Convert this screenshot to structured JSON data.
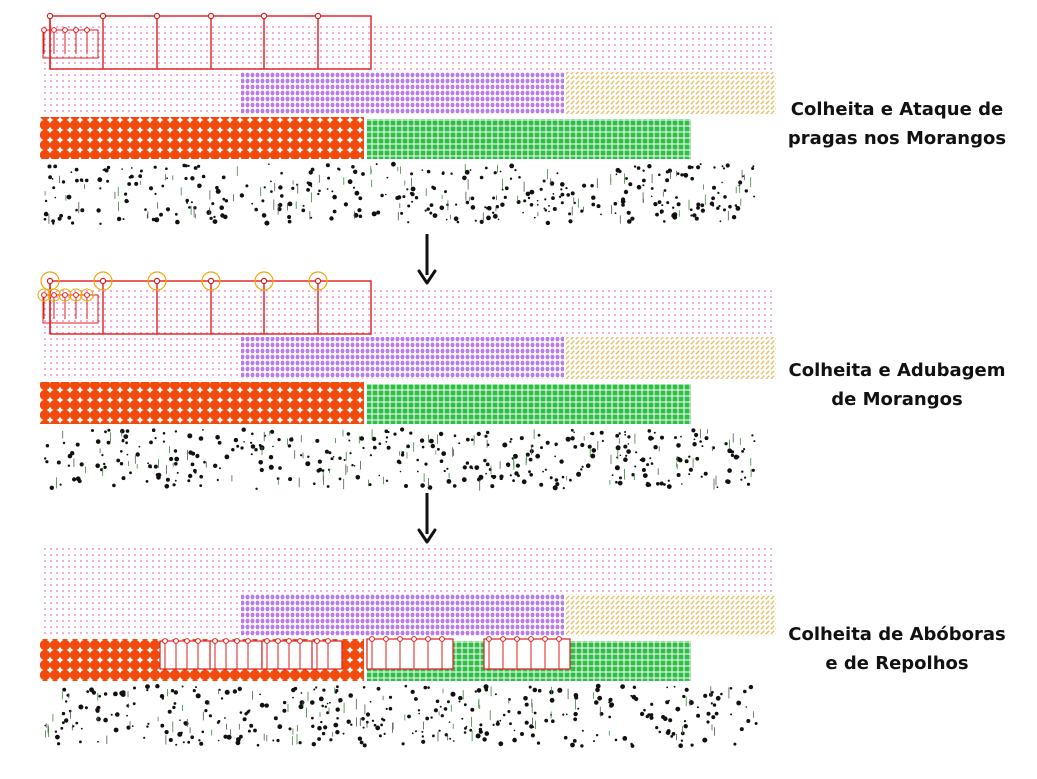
{
  "stages": [
    {
      "label_line1": "Colheita e Ataque de",
      "label_line2": "pragas nos Morangos"
    },
    {
      "label_line1": "Colheita e Adubagem",
      "label_line2": "de Morangos"
    },
    {
      "label_line1": "Colheita de Abóboras",
      "label_line2": "e de Repolhos"
    }
  ],
  "colors": {
    "pink_crop": "#f06ec8",
    "purple_crop": "#b77ee6",
    "yellow_crop": "#e8c06a",
    "orange_crop": "#f04a0c",
    "green_crop": "#2fbf46",
    "soil_dots": "#111111",
    "harvester": "#e01d1d",
    "pest_marker": "#f0a800",
    "arrow": "#111111"
  },
  "icons": {
    "arrow": "arrow-down-icon",
    "harvester": "harvester-icon",
    "pest": "pest-circle-icon"
  }
}
